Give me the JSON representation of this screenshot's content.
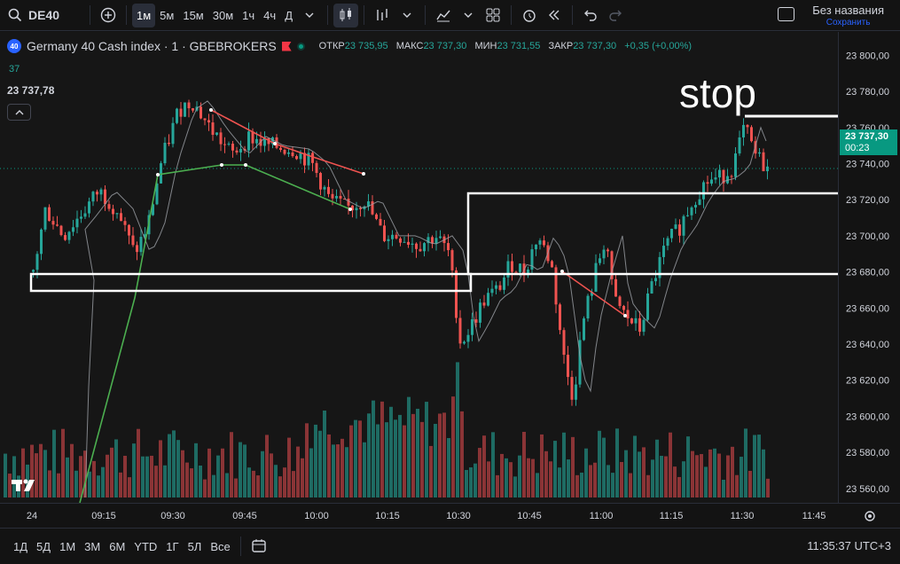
{
  "toolbar": {
    "symbol": "DE40",
    "intervals": [
      "1м",
      "5м",
      "15м",
      "30м",
      "1ч",
      "4ч",
      "Д"
    ],
    "active_interval": "1м",
    "layout_name": "Без названия",
    "layout_status": "Сохранить"
  },
  "legend": {
    "badge": "40",
    "title": "Germany 40 Cash index · 1 · GBEBROKERS",
    "open_label": "ОТКР",
    "open": "23 735,95",
    "high_label": "МАКС",
    "high": "23 737,30",
    "low_label": "МИН",
    "low": "23 731,55",
    "close_label": "ЗАКР",
    "close": "23 737,30",
    "change": "+0,35 (+0,00%)",
    "indicator_value": "37",
    "price": "23 737,78"
  },
  "annotation": {
    "text": "stop"
  },
  "price_axis": {
    "labels": [
      "23 800,00",
      "23 780,00",
      "23 760,00",
      "23 740,00",
      "23 720,00",
      "23 700,00",
      "23 680,00",
      "23 660,00",
      "23 640,00",
      "23 620,00",
      "23 600,00",
      "23 580,00",
      "23 560,00"
    ],
    "current_price": "23 737,30",
    "countdown": "00:23"
  },
  "time_axis": {
    "labels": [
      "24",
      "09:15",
      "09:30",
      "09:45",
      "10:00",
      "10:15",
      "10:30",
      "10:45",
      "11:00",
      "11:15",
      "11:30",
      "11:45"
    ]
  },
  "bottom": {
    "ranges": [
      "1Д",
      "5Д",
      "1М",
      "3М",
      "6М",
      "YTD",
      "1Г",
      "5Л",
      "Все"
    ],
    "clock": "11:35:37 UTC+3"
  },
  "colors": {
    "up": "#26a69a",
    "down": "#ef5350",
    "background": "#161616"
  },
  "chart_data": {
    "type": "candlestick",
    "title": "Germany 40 Cash index · 1 · GBEBROKERS",
    "ylim": [
      23555,
      23810
    ],
    "last_price": 23737.3,
    "annotations": [
      "stop"
    ]
  }
}
